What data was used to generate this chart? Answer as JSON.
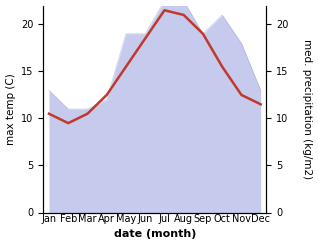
{
  "months": [
    "Jan",
    "Feb",
    "Mar",
    "Apr",
    "May",
    "Jun",
    "Jul",
    "Aug",
    "Sep",
    "Oct",
    "Nov",
    "Dec"
  ],
  "max_temp": [
    10.5,
    9.5,
    10.5,
    12.5,
    15.5,
    18.5,
    21.5,
    21.0,
    19.0,
    15.5,
    12.5,
    11.5
  ],
  "precipitation": [
    13.0,
    11.0,
    11.0,
    12.0,
    19.0,
    19.0,
    22.5,
    22.5,
    19.0,
    21.0,
    18.0,
    13.0
  ],
  "temp_color": "#c0392b",
  "precip_fill_color": "#b3b9e8",
  "precip_fill_alpha": 0.75,
  "precip_line_color": "#9099cc",
  "ylabel_left": "max temp (C)",
  "ylabel_right": "med. precipitation (kg/m2)",
  "xlabel": "date (month)",
  "ylim_left": [
    0,
    22
  ],
  "ylim_right": [
    0,
    22
  ],
  "yticks_left": [
    0,
    5,
    10,
    15,
    20
  ],
  "yticks_right": [
    0,
    5,
    10,
    15,
    20
  ],
  "background_color": "#ffffff",
  "plot_bg_color": "#ffffff",
  "temp_linewidth": 1.8,
  "label_fontsize": 7.5,
  "tick_fontsize": 7,
  "xlabel_fontsize": 8
}
